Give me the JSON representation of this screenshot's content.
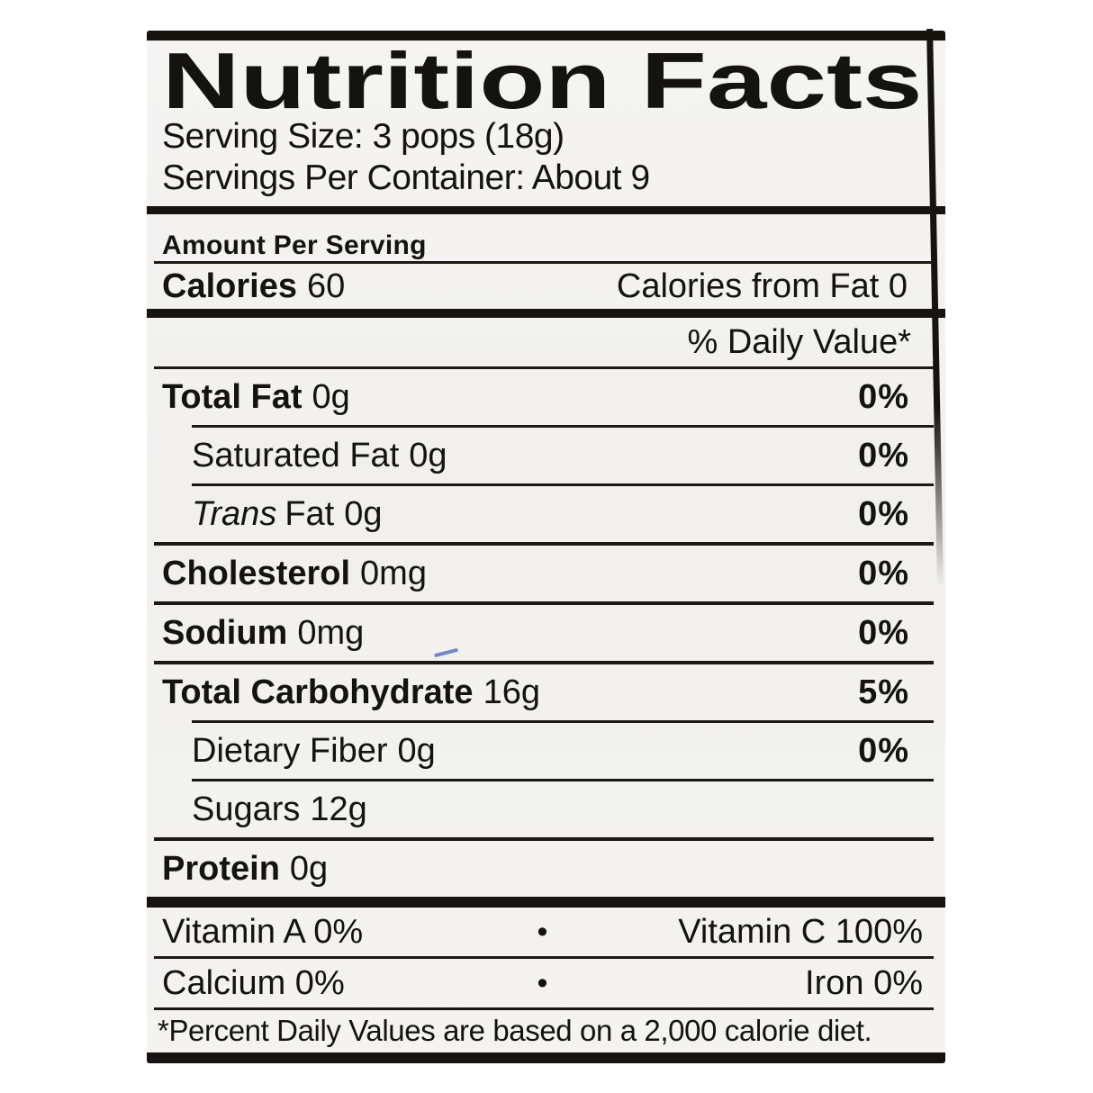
{
  "label": {
    "title": "Nutrition Facts",
    "serving_size": "Serving Size: 3 pops (18g)",
    "servings_per_container": "Servings Per Container: About 9",
    "amount_per_serving": "Amount Per Serving",
    "calories_label": "Calories",
    "calories_value": "60",
    "calories_from_fat": "Calories from Fat 0",
    "daily_value_header": "% Daily Value*",
    "rows": [
      {
        "name": "Total Fat",
        "amount": "0g",
        "dv": "0%"
      },
      {
        "name": "Saturated Fat",
        "amount": "0g",
        "dv": "0%"
      },
      {
        "name_italic": "Trans",
        "name": "Fat",
        "amount": "0g",
        "dv": "0%"
      },
      {
        "name": "Cholesterol",
        "amount": "0mg",
        "dv": "0%"
      },
      {
        "name": "Sodium",
        "amount": "0mg",
        "dv": "0%"
      },
      {
        "name": "Total Carbohydrate",
        "amount": "16g",
        "dv": "5%"
      },
      {
        "name": "Dietary Fiber",
        "amount": "0g",
        "dv": "0%"
      },
      {
        "name": "Sugars",
        "amount": "12g",
        "dv": ""
      },
      {
        "name": "Protein",
        "amount": "0g",
        "dv": ""
      }
    ],
    "micros": [
      {
        "left": "Vitamin  A 0%",
        "bullet": "•",
        "right": "Vitamin C 100%"
      },
      {
        "left": "Calcium 0%",
        "bullet": "•",
        "right": "Iron 0%"
      }
    ],
    "footnote": "*Percent Daily Values are based on a 2,000 calorie diet."
  },
  "colors": {
    "page_bg": "#ffffff",
    "label_bg": "#f3f2ef",
    "bar_black": "#17130e",
    "text": "#141310",
    "ink_mark_blue": "#4a63b8"
  }
}
